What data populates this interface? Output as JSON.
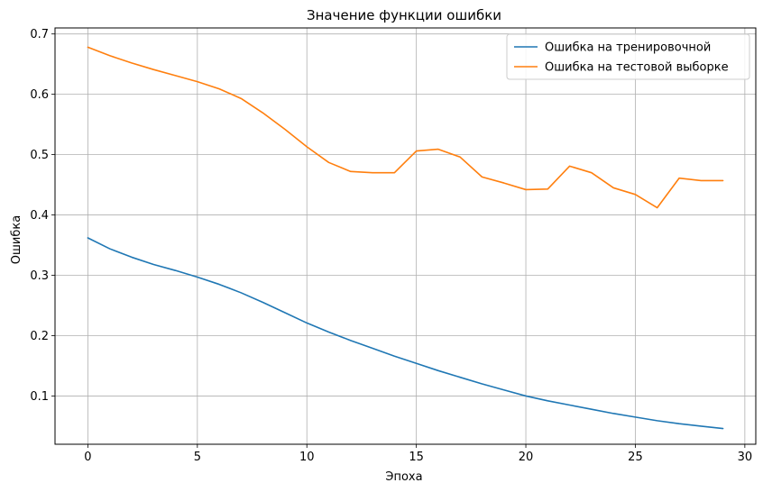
{
  "chart_data": {
    "type": "line",
    "title": "Значение функции ошибки",
    "xlabel": "Эпоха",
    "ylabel": "Ошибка",
    "xlim": [
      -1.5,
      30.5
    ],
    "ylim": [
      0.02,
      0.71
    ],
    "x_ticks": [
      0,
      5,
      10,
      15,
      20,
      25,
      30
    ],
    "y_ticks": [
      0.1,
      0.2,
      0.3,
      0.4,
      0.5,
      0.6,
      0.7
    ],
    "grid": true,
    "legend_position": "top-right",
    "x": [
      0,
      1,
      2,
      3,
      4,
      5,
      6,
      7,
      8,
      9,
      10,
      11,
      12,
      13,
      14,
      15,
      16,
      17,
      18,
      19,
      20,
      21,
      22,
      23,
      24,
      25,
      26,
      27,
      28,
      29
    ],
    "series": [
      {
        "name": "Ошибка на тренировочной",
        "color": "#1f77b4",
        "values": [
          0.362,
          0.344,
          0.33,
          0.318,
          0.308,
          0.297,
          0.285,
          0.271,
          0.255,
          0.238,
          0.221,
          0.206,
          0.192,
          0.179,
          0.166,
          0.154,
          0.142,
          0.131,
          0.12,
          0.11,
          0.1,
          0.092,
          0.085,
          0.078,
          0.071,
          0.065,
          0.059,
          0.054,
          0.05,
          0.046
        ]
      },
      {
        "name": "Ошибка на тестовой выборке",
        "color": "#ff7f0e",
        "values": [
          0.678,
          0.664,
          0.652,
          0.641,
          0.631,
          0.621,
          0.609,
          0.593,
          0.569,
          0.542,
          0.513,
          0.487,
          0.472,
          0.47,
          0.47,
          0.506,
          0.509,
          0.496,
          0.463,
          0.453,
          0.442,
          0.443,
          0.481,
          0.47,
          0.445,
          0.434,
          0.412,
          0.461,
          0.457,
          0.457
        ]
      }
    ]
  }
}
